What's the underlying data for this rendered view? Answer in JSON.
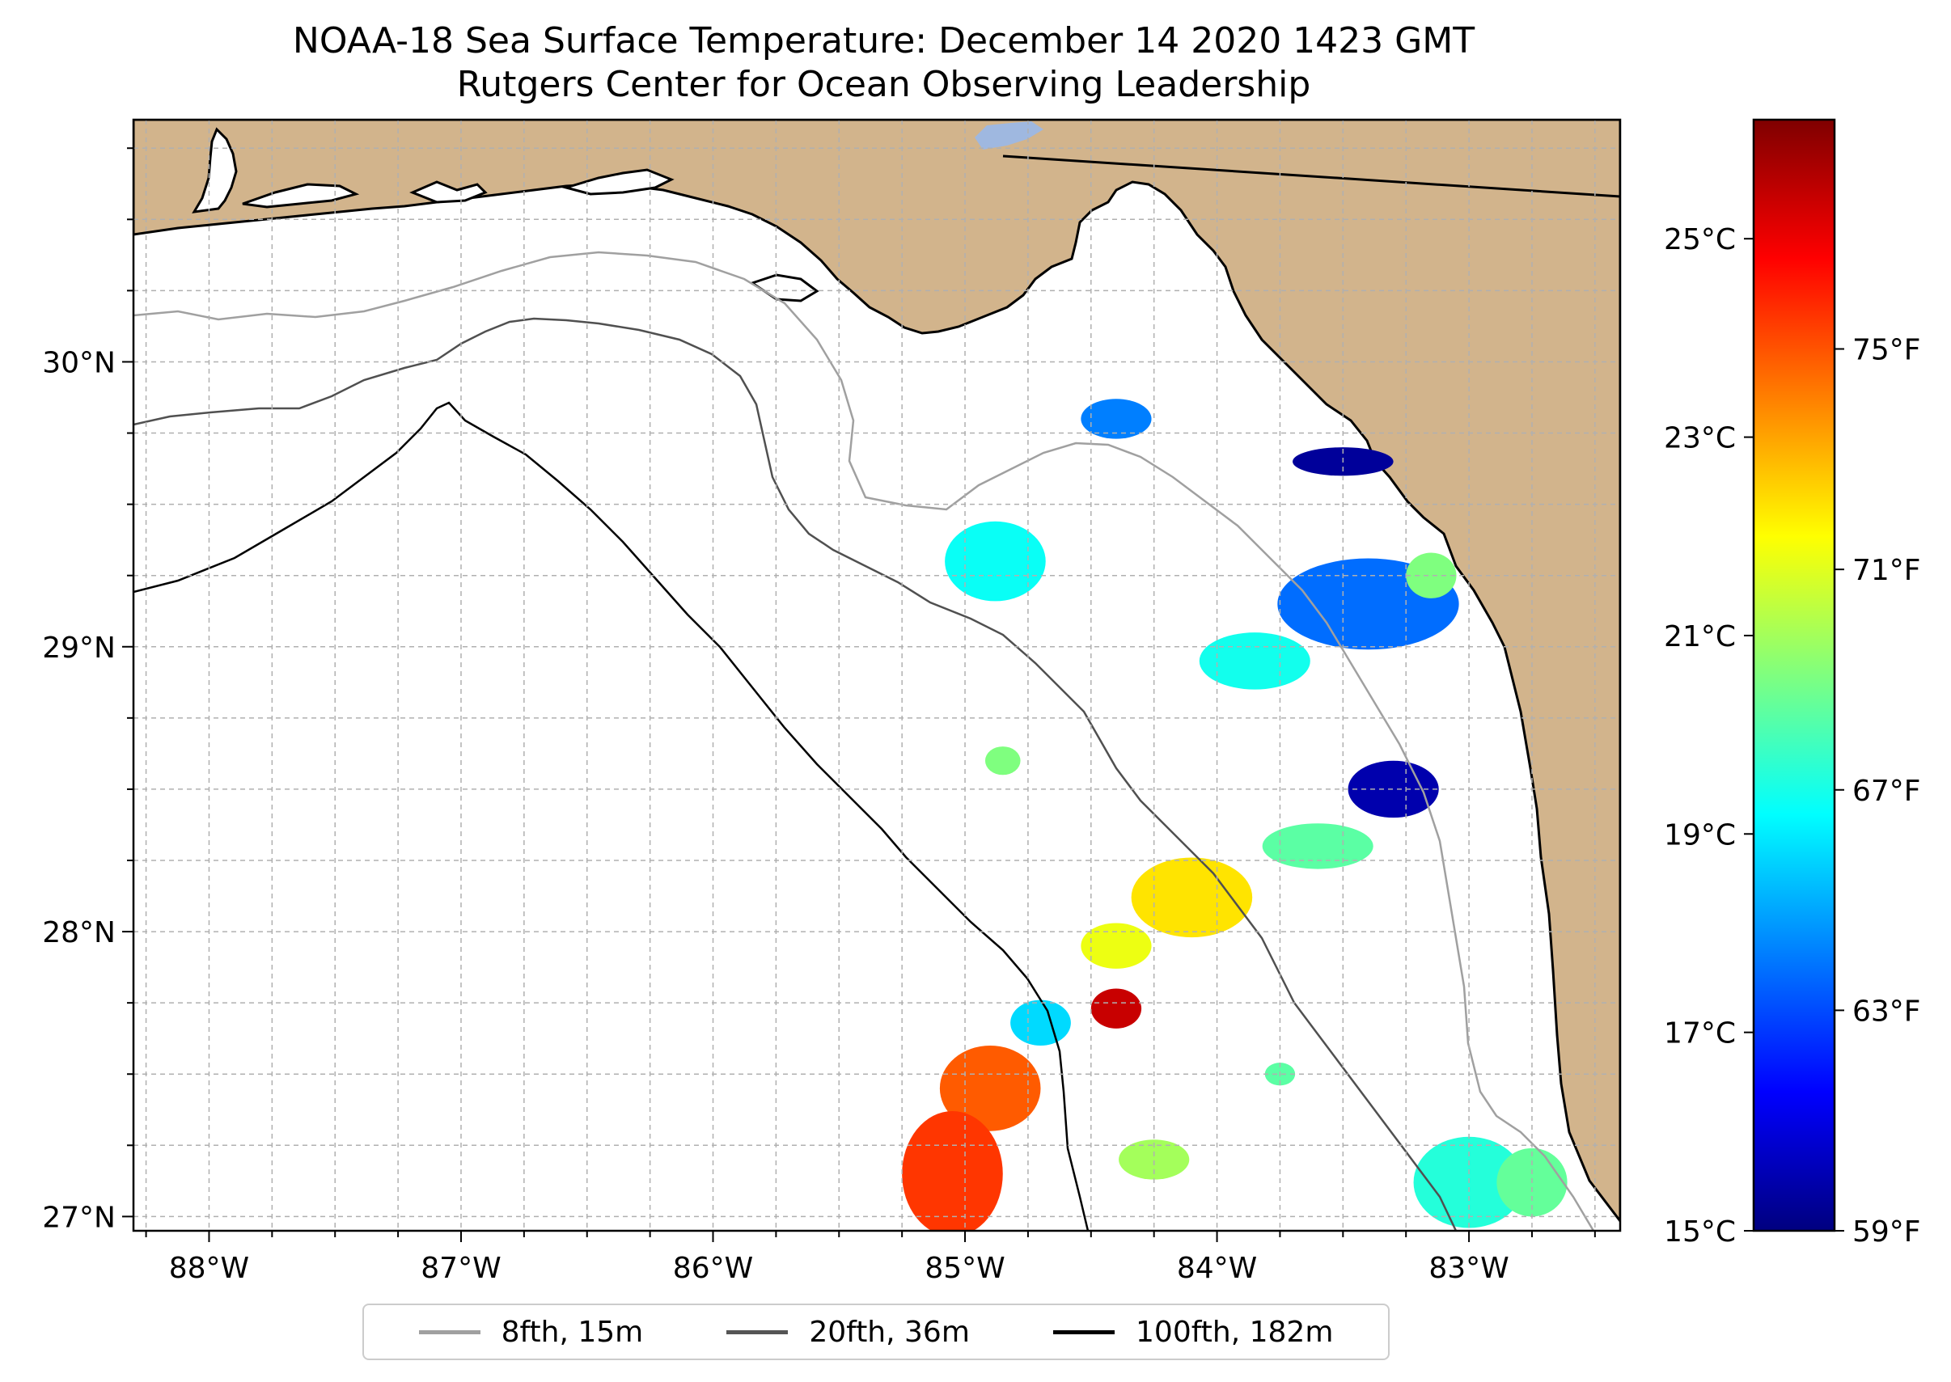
{
  "title": {
    "line1": "NOAA-18 Sea Surface Temperature: December 14 2020 1423 GMT",
    "line2": "Rutgers Center for Ocean Observing Leadership"
  },
  "map": {
    "lon_range": [
      -88.3,
      -82.4
    ],
    "lat_range": [
      26.95,
      30.85
    ],
    "lon_ticks": [
      {
        "value": -88,
        "label": "88°W"
      },
      {
        "value": -87,
        "label": "87°W"
      },
      {
        "value": -86,
        "label": "86°W"
      },
      {
        "value": -85,
        "label": "85°W"
      },
      {
        "value": -84,
        "label": "84°W"
      },
      {
        "value": -83,
        "label": "83°W"
      }
    ],
    "lat_ticks": [
      {
        "value": 30,
        "label": "30°N"
      },
      {
        "value": 29,
        "label": "29°N"
      },
      {
        "value": 28,
        "label": "28°N"
      },
      {
        "value": 27,
        "label": "27°N"
      }
    ],
    "grid_step_deg": 0.25,
    "colors": {
      "land": "#d2b48c",
      "water": "#ffffff",
      "grid": "#b0b0b0",
      "lake": "#9fb8e0"
    }
  },
  "colorbar": {
    "celsius_range": [
      15,
      26.2
    ],
    "celsius_ticks": [
      {
        "value": 25,
        "label": "25°C"
      },
      {
        "value": 23,
        "label": "23°C"
      },
      {
        "value": 21,
        "label": "21°C"
      },
      {
        "value": 19,
        "label": "19°C"
      },
      {
        "value": 17,
        "label": "17°C"
      },
      {
        "value": 15,
        "label": "15°C"
      }
    ],
    "fahrenheit_ticks": [
      {
        "value": 75,
        "label": "75°F"
      },
      {
        "value": 71,
        "label": "71°F"
      },
      {
        "value": 67,
        "label": "67°F"
      },
      {
        "value": 63,
        "label": "63°F"
      },
      {
        "value": 59,
        "label": "59°F"
      }
    ],
    "colormap": [
      "#00007f",
      "#0000ff",
      "#007fff",
      "#00ffff",
      "#7fff7f",
      "#ffff00",
      "#ff7f00",
      "#ff0000",
      "#7f0000"
    ]
  },
  "legend": [
    {
      "label": "8fth, 15m",
      "color": "#a0a0a0"
    },
    {
      "label": "20fth, 36m",
      "color": "#555555"
    },
    {
      "label": "100fth, 182m",
      "color": "#000000"
    }
  ],
  "sst_patches": [
    {
      "lon": -84.88,
      "lat": 29.3,
      "rx": 0.2,
      "ry": 0.14,
      "temp_c": 19.3
    },
    {
      "lon": -84.4,
      "lat": 29.8,
      "rx": 0.14,
      "ry": 0.07,
      "temp_c": 17.8
    },
    {
      "lon": -83.5,
      "lat": 29.65,
      "rx": 0.2,
      "ry": 0.05,
      "temp_c": 15.3
    },
    {
      "lon": -83.4,
      "lat": 29.15,
      "rx": 0.36,
      "ry": 0.16,
      "temp_c": 17.6
    },
    {
      "lon": -83.15,
      "lat": 29.25,
      "rx": 0.1,
      "ry": 0.08,
      "temp_c": 20.6
    },
    {
      "lon": -83.85,
      "lat": 28.95,
      "rx": 0.22,
      "ry": 0.1,
      "temp_c": 19.4
    },
    {
      "lon": -83.3,
      "lat": 28.5,
      "rx": 0.18,
      "ry": 0.1,
      "temp_c": 15.5
    },
    {
      "lon": -83.6,
      "lat": 28.3,
      "rx": 0.22,
      "ry": 0.08,
      "temp_c": 20.2
    },
    {
      "lon": -84.85,
      "lat": 28.6,
      "rx": 0.07,
      "ry": 0.05,
      "temp_c": 20.6
    },
    {
      "lon": -84.1,
      "lat": 28.12,
      "rx": 0.24,
      "ry": 0.14,
      "temp_c": 22.3
    },
    {
      "lon": -84.4,
      "lat": 27.95,
      "rx": 0.14,
      "ry": 0.08,
      "temp_c": 21.8
    },
    {
      "lon": -84.4,
      "lat": 27.73,
      "rx": 0.1,
      "ry": 0.07,
      "temp_c": 25.4
    },
    {
      "lon": -84.7,
      "lat": 27.68,
      "rx": 0.12,
      "ry": 0.08,
      "temp_c": 18.8
    },
    {
      "lon": -84.9,
      "lat": 27.45,
      "rx": 0.2,
      "ry": 0.15,
      "temp_c": 23.8
    },
    {
      "lon": -85.05,
      "lat": 27.15,
      "rx": 0.2,
      "ry": 0.22,
      "temp_c": 24.2
    },
    {
      "lon": -84.25,
      "lat": 27.2,
      "rx": 0.14,
      "ry": 0.07,
      "temp_c": 21.0
    },
    {
      "lon": -83.75,
      "lat": 27.5,
      "rx": 0.06,
      "ry": 0.04,
      "temp_c": 20.2
    },
    {
      "lon": -83.0,
      "lat": 27.12,
      "rx": 0.22,
      "ry": 0.16,
      "temp_c": 19.6
    },
    {
      "lon": -82.75,
      "lat": 27.12,
      "rx": 0.14,
      "ry": 0.12,
      "temp_c": 20.3
    }
  ]
}
